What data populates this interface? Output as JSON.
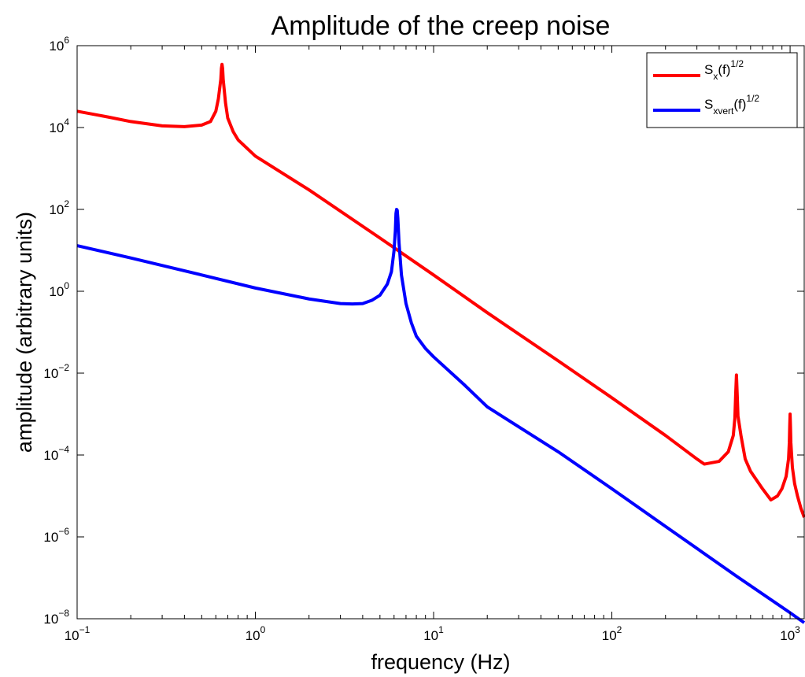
{
  "chart_data": {
    "type": "line",
    "title": "Amplitude of the creep noise",
    "xlabel": "frequency (Hz)",
    "ylabel": "amplitude (arbitrary units)",
    "x_scale": "log",
    "y_scale": "log",
    "xlim": [
      0.1,
      1200
    ],
    "ylim": [
      1e-08,
      1000000.0
    ],
    "grid": false,
    "legend_position": "top-right",
    "x_ticks": [
      {
        "value": 0.1,
        "base": "10",
        "exp": "−1"
      },
      {
        "value": 1,
        "base": "10",
        "exp": "0"
      },
      {
        "value": 10,
        "base": "10",
        "exp": "1"
      },
      {
        "value": 100,
        "base": "10",
        "exp": "2"
      },
      {
        "value": 1000,
        "base": "10",
        "exp": "3"
      }
    ],
    "y_ticks": [
      {
        "value": 1e-08,
        "base": "10",
        "exp": "−8"
      },
      {
        "value": 1e-06,
        "base": "10",
        "exp": "−6"
      },
      {
        "value": 0.0001,
        "base": "10",
        "exp": "−4"
      },
      {
        "value": 0.01,
        "base": "10",
        "exp": "−2"
      },
      {
        "value": 1,
        "base": "10",
        "exp": "0"
      },
      {
        "value": 100,
        "base": "10",
        "exp": "2"
      },
      {
        "value": 10000,
        "base": "10",
        "exp": "4"
      },
      {
        "value": 1000000,
        "base": "10",
        "exp": "6"
      }
    ],
    "series": [
      {
        "name": "S_x(f)^1/2",
        "legend": {
          "main": "S",
          "sub": "x",
          "rest": "(f)",
          "sup": "1/2"
        },
        "color": "#ff0000",
        "x": [
          0.1,
          0.15,
          0.2,
          0.3,
          0.4,
          0.5,
          0.56,
          0.6,
          0.62,
          0.64,
          0.645,
          0.65,
          0.655,
          0.66,
          0.68,
          0.7,
          0.75,
          0.8,
          1,
          2,
          5,
          10,
          20,
          50,
          100,
          200,
          300,
          330,
          400,
          450,
          480,
          490,
          495,
          500,
          505,
          510,
          530,
          560,
          600,
          700,
          780,
          850,
          900,
          950,
          980,
          990,
          995,
          1000,
          1005,
          1010,
          1030,
          1060,
          1100,
          1150,
          1200
        ],
        "y": [
          25000,
          18000,
          14000,
          11000,
          10500,
          11500,
          14000,
          25000,
          50000,
          150000,
          280000,
          350000,
          280000,
          150000,
          40000,
          17000,
          8000,
          5000,
          2000,
          300,
          20,
          2.5,
          0.3,
          0.02,
          0.0025,
          0.0003,
          8e-05,
          6e-05,
          7e-05,
          0.00012,
          0.0003,
          0.0008,
          0.003,
          0.009,
          0.003,
          0.0009,
          0.0003,
          8e-05,
          4e-05,
          1.5e-05,
          8e-06,
          1e-05,
          1.5e-05,
          3e-05,
          8e-05,
          0.0002,
          0.0005,
          0.001,
          0.0005,
          0.0002,
          5e-05,
          2e-05,
          1e-05,
          5e-06,
          3e-06
        ]
      },
      {
        "name": "S_xvert(f)^1/2",
        "legend": {
          "main": "S",
          "sub": "xvert",
          "rest": "(f)",
          "sup": "1/2"
        },
        "color": "#0000ff",
        "x": [
          0.1,
          0.2,
          0.5,
          1,
          2,
          3,
          3.5,
          4,
          4.5,
          5,
          5.5,
          5.8,
          6,
          6.1,
          6.15,
          6.2,
          6.25,
          6.3,
          6.4,
          6.6,
          7,
          7.5,
          8,
          9,
          10,
          15,
          20,
          50,
          100,
          200,
          500,
          1000,
          1200
        ],
        "y": [
          13,
          6.5,
          2.5,
          1.2,
          0.65,
          0.5,
          0.49,
          0.5,
          0.6,
          0.8,
          1.5,
          3,
          10,
          30,
          80,
          100,
          95,
          60,
          15,
          2.5,
          0.5,
          0.17,
          0.08,
          0.04,
          0.025,
          0.005,
          0.0015,
          0.00012,
          1.5e-05,
          1.8e-06,
          1.1e-07,
          1.4e-08,
          8e-09
        ]
      }
    ]
  }
}
